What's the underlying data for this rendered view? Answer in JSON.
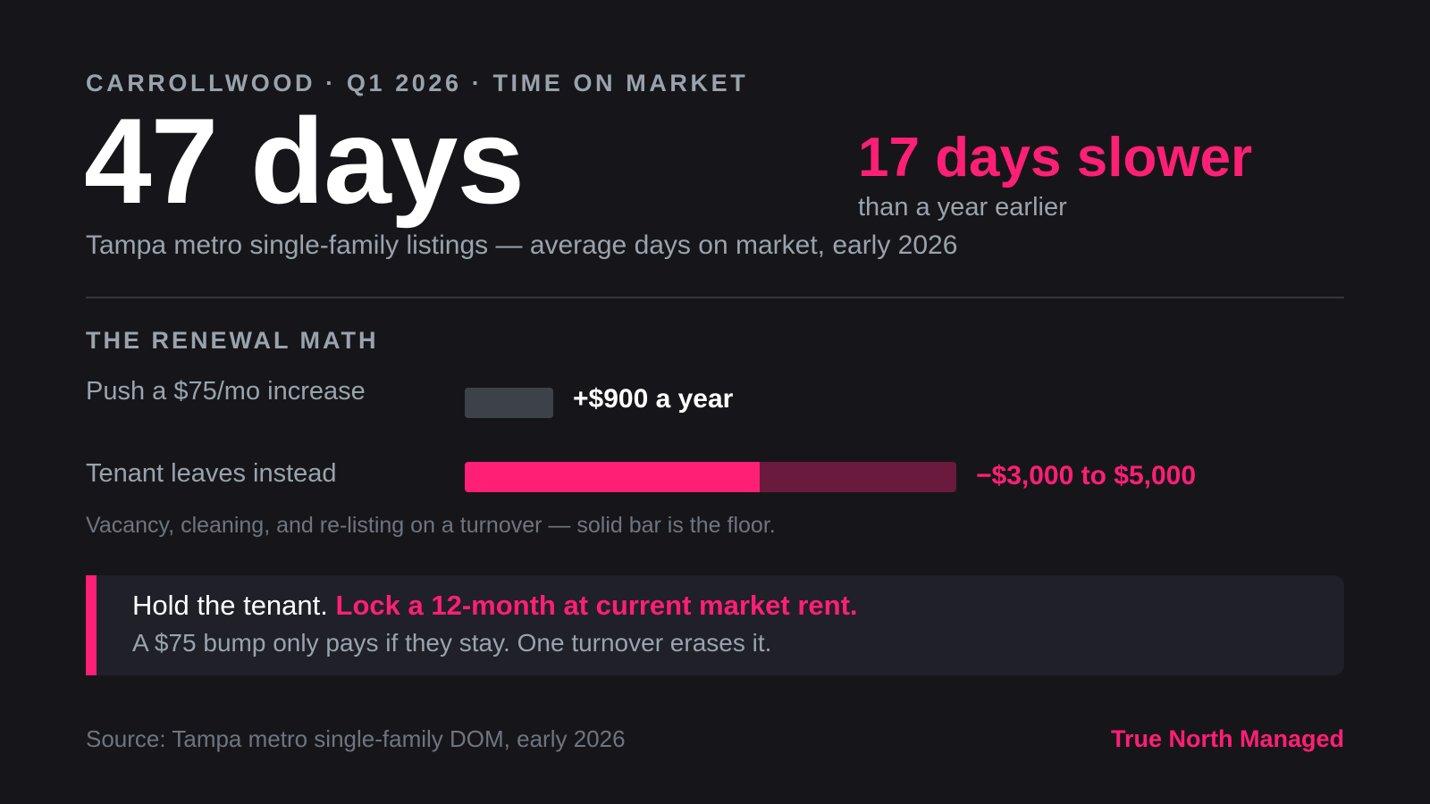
{
  "header": {
    "eyebrow": "CARROLLWOOD · Q1 2026 · TIME ON MARKET",
    "big_stat": "47 days",
    "subtitle": "Tampa metro single-family listings — average days on market, early 2026"
  },
  "delta": {
    "value": "17 days slower",
    "caption": "than a year earlier"
  },
  "renewal": {
    "title": "THE RENEWAL MATH",
    "rows": [
      {
        "label": "Push a $75/mo increase",
        "value": "+$900 a year",
        "amount_low": 900,
        "amount_high": 900
      },
      {
        "label": "Tenant leaves instead",
        "value": "−$3,000 to $5,000",
        "amount_low": 3000,
        "amount_high": 5000
      }
    ],
    "scale_max": 5000,
    "footnote": "Vacancy, cleaning, and re-listing on a turnover — solid bar is the floor."
  },
  "callout": {
    "lead": "Hold the tenant.",
    "emphasis": "Lock a 12-month at current market rent.",
    "body": "A $75 bump only pays if they stay. One turnover erases it."
  },
  "footer": {
    "source": "Source: Tampa metro single-family DOM, early 2026",
    "brand": "True North Managed"
  },
  "colors": {
    "background": "#16161a",
    "accent": "#ff1f75",
    "accent_dim": "#6a1a3c",
    "neutral_bar": "#3d4148",
    "muted_text": "#9aa3ad"
  }
}
